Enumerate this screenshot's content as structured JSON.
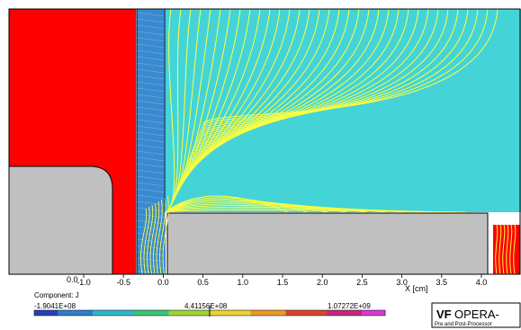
{
  "plot": {
    "x_axis_label": "X [cm]",
    "x_ticks": [
      "-1.0",
      "-0.5",
      "0.0",
      "0.5",
      "1.0",
      "1.5",
      "2.0",
      "2.5",
      "3.0",
      "3.5",
      "4.0"
    ],
    "y_tick_fragment": "0.0"
  },
  "legend": {
    "component_label": "Component: J",
    "min": "-1.9041E+08",
    "mid": "4.41156E+08",
    "max": "1.07272E+09"
  },
  "logo": {
    "mark": "VF",
    "title": "OPERA-",
    "subtitle": "Pre and Post-Processor"
  },
  "colors": {
    "conductor": "#ff0000",
    "iron": "#c0c0c0",
    "field_region": "#44d4d8",
    "mesh_region": "#3a8ad0",
    "contour": "#ffff40",
    "legend_colormap": [
      "#2b3fb5",
      "#2f7ec9",
      "#2fb7c8",
      "#3ac47a",
      "#9fd13b",
      "#e8d23a",
      "#e89a2a",
      "#d8452a",
      "#c02a7a",
      "#d63ad6"
    ]
  }
}
